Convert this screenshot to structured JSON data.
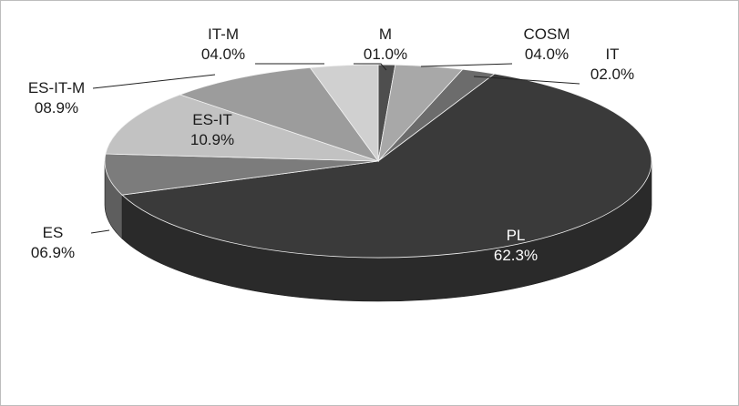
{
  "chart_data": {
    "type": "pie",
    "three_d": true,
    "slices": [
      {
        "label": "PL",
        "value": 62.3,
        "display": "62.3%",
        "color": "#3a3a3a",
        "side_color": "#2a2a2a"
      },
      {
        "label": "ES",
        "value": 6.9,
        "display": "06.9%",
        "color": "#7c7c7c",
        "side_color": "#5e5e5e"
      },
      {
        "label": "ES-IT",
        "value": 10.9,
        "display": "10.9%",
        "color": "#c2c2c2",
        "side_color": "#9a9a9a"
      },
      {
        "label": "ES-IT-M",
        "value": 8.9,
        "display": "08.9%",
        "color": "#9c9c9c",
        "side_color": "#7a7a7a"
      },
      {
        "label": "IT-M",
        "value": 4.0,
        "display": "04.0%",
        "color": "#d0d0d0",
        "side_color": "#a8a8a8"
      },
      {
        "label": "M",
        "value": 1.0,
        "display": "01.0%",
        "color": "#4e4e4e",
        "side_color": "#3a3a3a"
      },
      {
        "label": "COSM",
        "value": 4.0,
        "display": "04.0%",
        "color": "#a8a8a8",
        "side_color": "#878787"
      },
      {
        "label": "IT",
        "value": 2.0,
        "display": "02.0%",
        "color": "#6c6c6c",
        "side_color": "#525252"
      }
    ]
  }
}
